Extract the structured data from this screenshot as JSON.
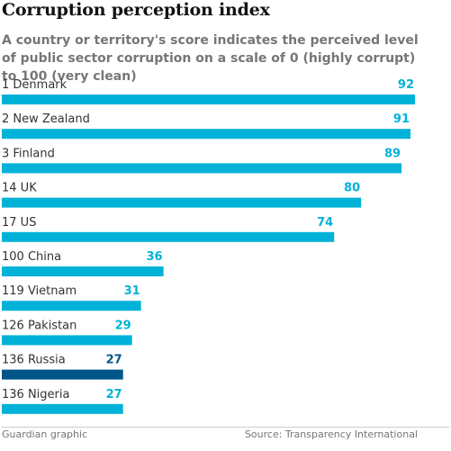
{
  "chart_data": {
    "type": "bar",
    "orientation": "horizontal",
    "title": "Corruption perception index",
    "subtitle": "A country or territory's score indicates the perceived level of public sector corruption on a scale of 0 (highly corrupt) to 100 (very clean)",
    "categories": [
      "1 Denmark",
      "2 New Zealand",
      "3 Finland",
      "14 UK",
      "17 US",
      "100 China",
      "119 Vietnam",
      "126 Pakistan",
      "136 Russia",
      "136 Nigeria"
    ],
    "values": [
      92,
      91,
      89,
      80,
      74,
      36,
      31,
      29,
      27,
      27
    ],
    "highlight": "136 Russia",
    "xlim": [
      0,
      92
    ],
    "grid": false,
    "colors": {
      "bar": "#00b2d8",
      "highlight": "#005689",
      "label": "#00b2d8",
      "highlight_label": "#005689"
    }
  },
  "footer": {
    "credit": "Guardian graphic",
    "source": "Source: Transparency International"
  }
}
